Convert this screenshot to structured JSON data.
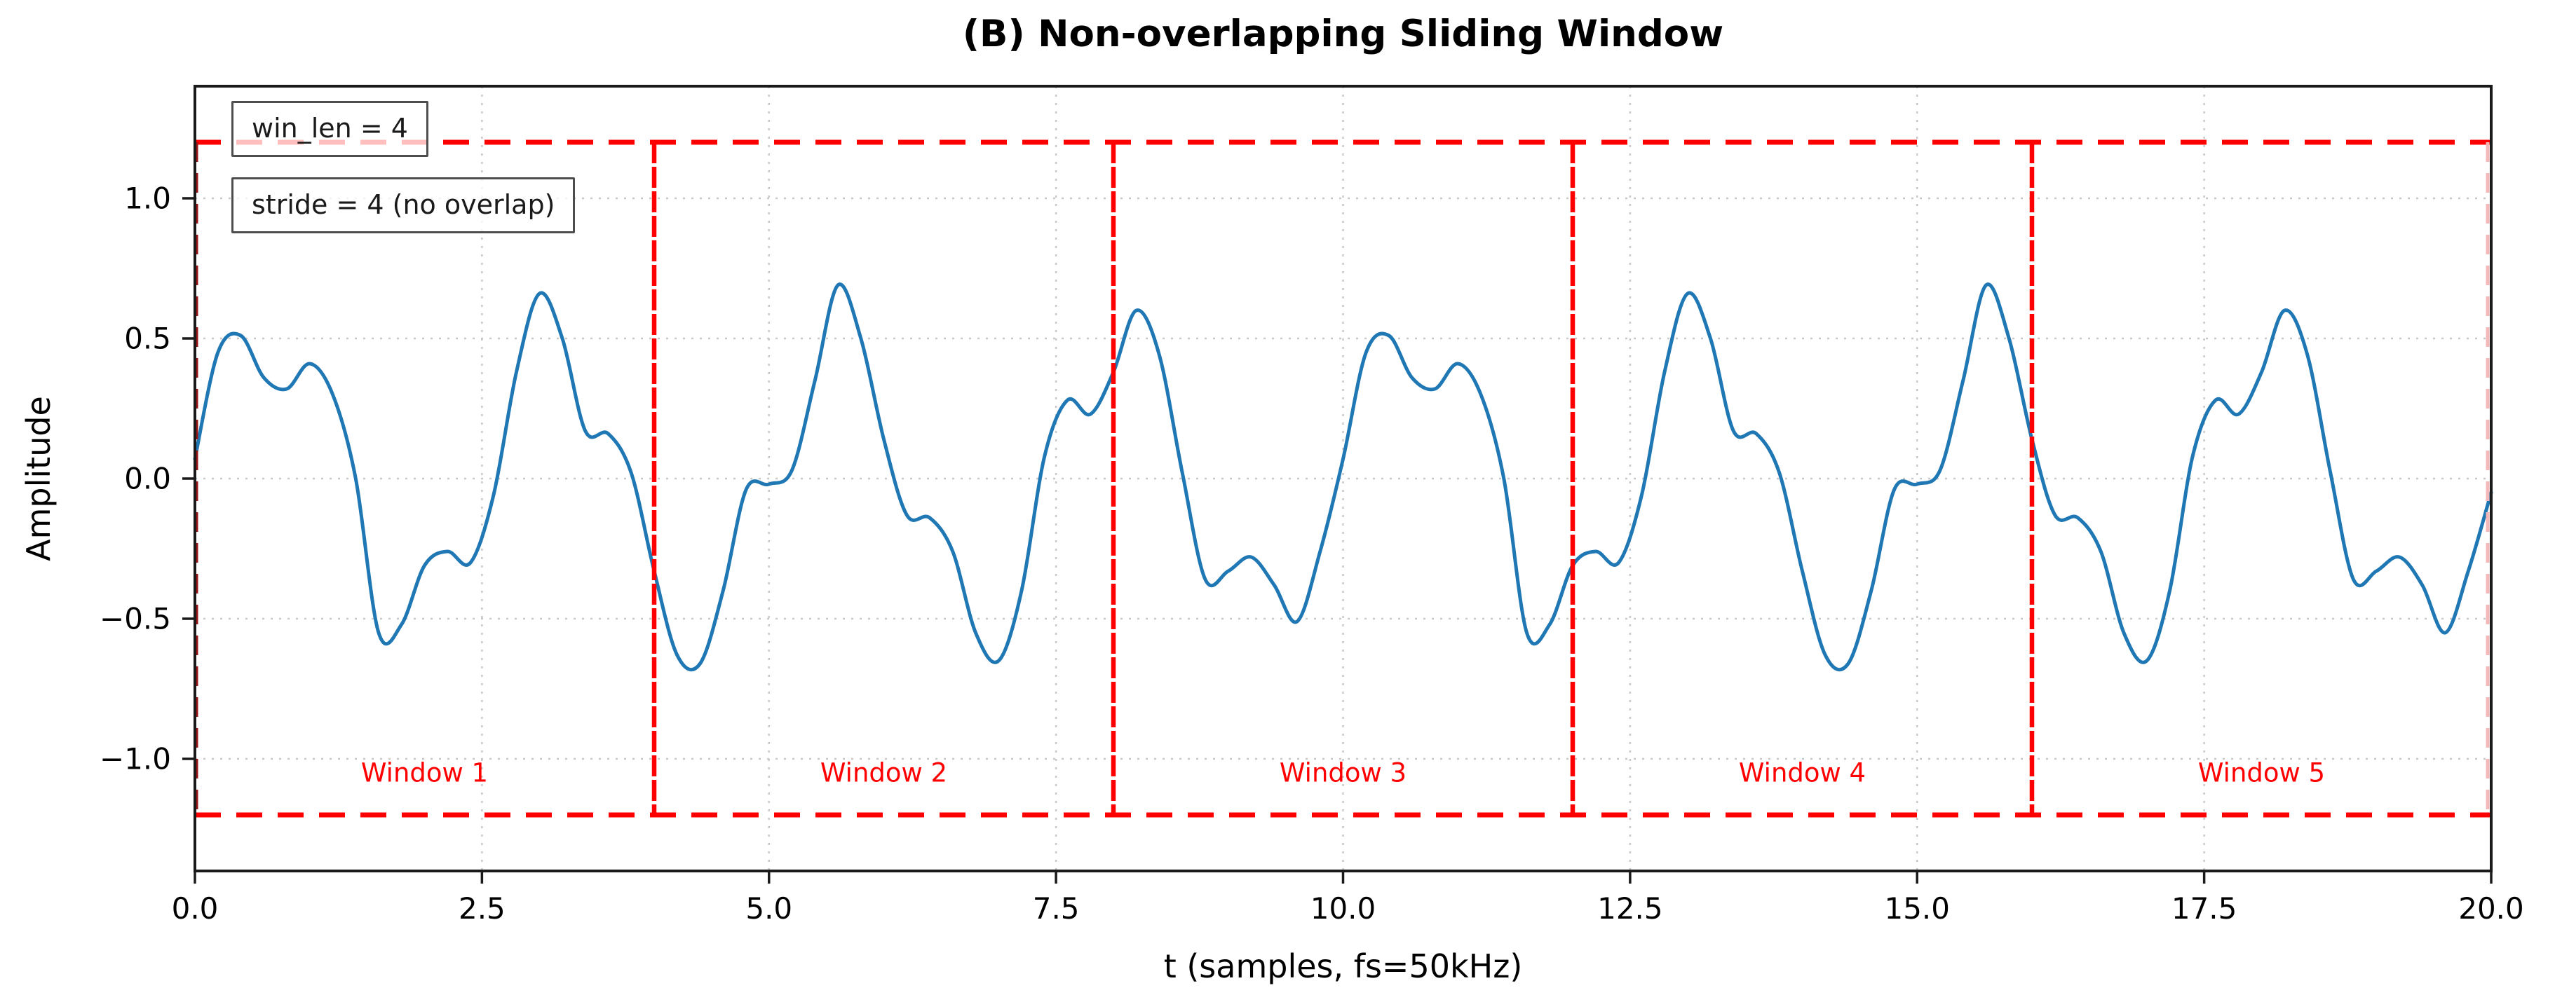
{
  "figure": {
    "title": "(B) Non-overlapping Sliding Window",
    "xlabel": "t (samples, fs=50kHz)",
    "ylabel": "Amplitude",
    "annotations": [
      {
        "label": "win_len = 4"
      },
      {
        "label": "stride = 4 (no overlap)"
      }
    ]
  },
  "colors": {
    "signal": "#1f77b4",
    "overlay_red": "#ff0000",
    "window_edge_left": "#991414",
    "window_edge_right": "#f5b8b8",
    "grid": "#c9c9c9",
    "spine": "#1a1a1a",
    "text": "#000000",
    "annotation_border": "#4d4d4d"
  },
  "chart_data": {
    "type": "line",
    "title": "(B) Non-overlapping Sliding Window",
    "xlabel": "t (samples, fs=50kHz)",
    "ylabel": "Amplitude",
    "xlim": [
      0,
      20
    ],
    "ylim": [
      -1.4,
      1.4
    ],
    "grid": "dotted",
    "legend_position": "none",
    "x_tick_values": [
      0,
      2.5,
      5,
      7.5,
      10,
      12.5,
      15,
      17.5,
      20
    ],
    "x_tick_labels": [
      "0.0",
      "2.5",
      "5.0",
      "7.5",
      "10.0",
      "12.5",
      "15.0",
      "17.5",
      "20.0"
    ],
    "y_tick_values": [
      1.0,
      0.5,
      0.0,
      -0.5,
      -1.0
    ],
    "y_tick_labels": [
      "1.0",
      "0.5",
      "0.0",
      "−0.5",
      "−1.0"
    ],
    "series": [
      {
        "name": "signal",
        "color": "#1f77b4",
        "x": [
          0.0,
          0.2,
          0.4,
          0.6,
          0.8,
          1.0,
          1.2,
          1.4,
          1.6,
          1.8,
          2.0,
          2.2,
          2.4,
          2.6,
          2.8,
          3.0,
          3.2,
          3.4,
          3.6,
          3.8,
          4.0,
          4.2,
          4.4,
          4.6,
          4.8,
          5.0,
          5.2,
          5.4,
          5.6,
          5.8,
          6.0,
          6.2,
          6.4,
          6.6,
          6.8,
          7.0,
          7.2,
          7.4,
          7.6,
          7.8,
          8.0,
          8.2,
          8.4,
          8.6,
          8.8,
          9.0,
          9.2,
          9.4,
          9.6,
          9.8,
          10.0,
          10.2,
          10.4,
          10.6,
          10.8,
          11.0,
          11.2,
          11.4,
          11.6,
          11.8,
          12.0,
          12.2,
          12.4,
          12.6,
          12.8,
          13.0,
          13.2,
          13.4,
          13.6,
          13.8,
          14.0,
          14.2,
          14.4,
          14.6,
          14.8,
          15.0,
          15.2,
          15.4,
          15.6,
          15.8,
          16.0,
          16.2,
          16.4,
          16.6,
          16.8,
          17.0,
          17.2,
          17.4,
          17.6,
          17.8,
          18.0,
          18.2,
          18.4,
          18.6,
          18.8,
          19.0,
          19.2,
          19.4,
          19.6,
          19.8,
          20.0
        ],
        "y": [
          0.07,
          0.45,
          0.51,
          0.36,
          0.32,
          0.41,
          0.3,
          0.0,
          -0.55,
          -0.52,
          -0.31,
          -0.26,
          -0.3,
          -0.06,
          0.38,
          0.66,
          0.5,
          0.17,
          0.16,
          0.02,
          -0.33,
          -0.63,
          -0.66,
          -0.4,
          -0.04,
          -0.02,
          0.03,
          0.35,
          0.69,
          0.5,
          0.14,
          -0.13,
          -0.14,
          -0.26,
          -0.55,
          -0.65,
          -0.4,
          0.08,
          0.28,
          0.23,
          0.38,
          0.6,
          0.44,
          0.02,
          -0.36,
          -0.33,
          -0.28,
          -0.38,
          -0.51,
          -0.26,
          0.07,
          0.45,
          0.51,
          0.36,
          0.32,
          0.41,
          0.3,
          0.0,
          -0.55,
          -0.52,
          -0.31,
          -0.26,
          -0.3,
          -0.06,
          0.38,
          0.66,
          0.5,
          0.17,
          0.16,
          0.02,
          -0.33,
          -0.63,
          -0.66,
          -0.4,
          -0.04,
          -0.02,
          0.03,
          0.35,
          0.69,
          0.5,
          0.14,
          -0.13,
          -0.14,
          -0.26,
          -0.55,
          -0.65,
          -0.4,
          0.08,
          0.28,
          0.23,
          0.38,
          0.6,
          0.44,
          0.02,
          -0.36,
          -0.33,
          -0.28,
          -0.38,
          -0.55,
          -0.33,
          -0.05
        ]
      }
    ],
    "overlays": {
      "hlines": [
        {
          "y": 1.2,
          "style": "dashed",
          "color": "#ff0000"
        },
        {
          "y": -1.2,
          "style": "dashed",
          "color": "#ff0000"
        }
      ],
      "window_boundaries_solid": [
        4,
        8,
        12,
        16
      ],
      "window_boundaries_dashed": [
        0,
        20
      ],
      "window_span_y": [
        -1.2,
        1.2
      ],
      "win_len": 4,
      "stride": 4,
      "window_labels": [
        {
          "label": "Window 1",
          "x": 2,
          "y": -1.05
        },
        {
          "label": "Window 2",
          "x": 6,
          "y": -1.05
        },
        {
          "label": "Window 3",
          "x": 10,
          "y": -1.05
        },
        {
          "label": "Window 4",
          "x": 14,
          "y": -1.05
        },
        {
          "label": "Window 5",
          "x": 18,
          "y": -1.05
        }
      ]
    }
  }
}
